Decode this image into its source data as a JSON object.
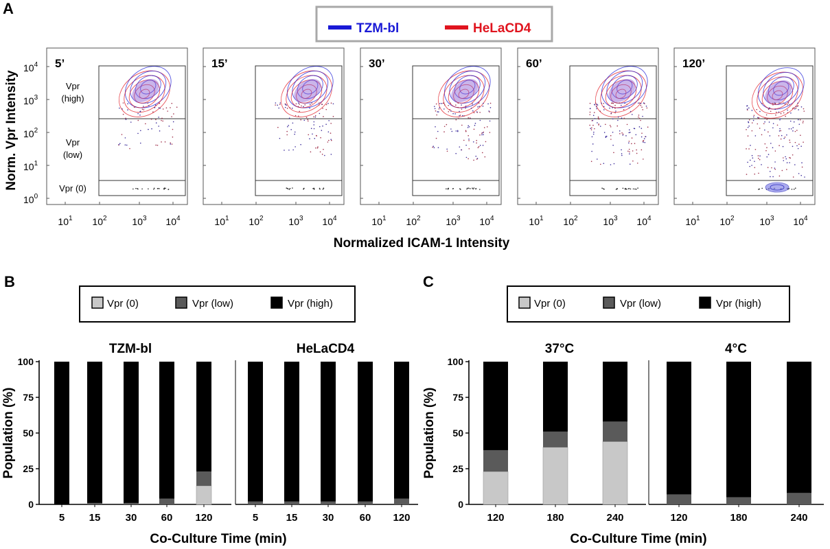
{
  "panel_labels": {
    "a": "A",
    "b": "B",
    "c": "C"
  },
  "panel_a": {
    "legend": [
      {
        "label": "TZM-bl",
        "color": "#1a1ad6"
      },
      {
        "label": "HeLaCD4",
        "color": "#e0141e"
      }
    ],
    "ylabel": "Norm. Vpr Intensity",
    "xlabel": "Normalized ICAM-1 Intensity",
    "y_tick_labels": [
      {
        "base": "10",
        "exp": "4"
      },
      {
        "base": "10",
        "exp": "3"
      },
      {
        "base": "10",
        "exp": "2"
      },
      {
        "base": "10",
        "exp": "1"
      },
      {
        "base": "10",
        "exp": "0"
      }
    ],
    "x_tick_labels": [
      {
        "base": "10",
        "exp": "1"
      },
      {
        "base": "10",
        "exp": "2"
      },
      {
        "base": "10",
        "exp": "3"
      },
      {
        "base": "10",
        "exp": "4"
      }
    ],
    "gate_labels": {
      "high": [
        "Vpr",
        "(high)"
      ],
      "low": [
        "Vpr",
        "(low)"
      ],
      "zero": "Vpr (0)"
    },
    "timepoints": [
      "5’",
      "15’",
      "30’",
      "60’",
      "120’"
    ],
    "axis_scale": "log"
  },
  "legend_bc": [
    {
      "label": "Vpr (0)",
      "color": "#c8c8c8"
    },
    {
      "label": "Vpr (low)",
      "color": "#5a5a5a"
    },
    {
      "label": "Vpr (high)",
      "color": "#000000"
    }
  ],
  "chart_data": [
    {
      "type": "bar",
      "stacked": true,
      "panel": "B",
      "title": "TZM-bl",
      "categories": [
        "5",
        "15",
        "30",
        "60",
        "120"
      ],
      "series": [
        {
          "name": "Vpr (0)",
          "values": [
            0,
            0,
            0,
            0,
            13
          ]
        },
        {
          "name": "Vpr (low)",
          "values": [
            0,
            1,
            1,
            4,
            10
          ]
        },
        {
          "name": "Vpr (high)",
          "values": [
            100,
            99,
            99,
            96,
            77
          ]
        }
      ],
      "ylabel": "Population (%)",
      "xlabel": "Co-Culture Time (min)",
      "ylim": [
        0,
        100
      ],
      "yticks": [
        0,
        25,
        50,
        75,
        100
      ]
    },
    {
      "type": "bar",
      "stacked": true,
      "panel": "B",
      "title": "HeLaCD4",
      "categories": [
        "5",
        "15",
        "30",
        "60",
        "120"
      ],
      "series": [
        {
          "name": "Vpr (0)",
          "values": [
            0,
            0,
            0,
            0,
            0
          ]
        },
        {
          "name": "Vpr (low)",
          "values": [
            2,
            2,
            2,
            2,
            4
          ]
        },
        {
          "name": "Vpr (high)",
          "values": [
            98,
            98,
            98,
            98,
            96
          ]
        }
      ],
      "xlabel": "Co-Culture Time (min)",
      "ylim": [
        0,
        100
      ]
    },
    {
      "type": "bar",
      "stacked": true,
      "panel": "C",
      "title": "37°C",
      "categories": [
        "120",
        "180",
        "240"
      ],
      "series": [
        {
          "name": "Vpr (0)",
          "values": [
            23,
            40,
            44
          ]
        },
        {
          "name": "Vpr (low)",
          "values": [
            15,
            11,
            14
          ]
        },
        {
          "name": "Vpr (high)",
          "values": [
            62,
            49,
            42
          ]
        }
      ],
      "ylabel": "Population (%)",
      "xlabel": "Co-Culture Time (min)",
      "ylim": [
        0,
        100
      ],
      "yticks": [
        0,
        25,
        50,
        75,
        100
      ]
    },
    {
      "type": "bar",
      "stacked": true,
      "panel": "C",
      "title": "4°C",
      "categories": [
        "120",
        "180",
        "240"
      ],
      "series": [
        {
          "name": "Vpr (0)",
          "values": [
            0,
            0,
            0
          ]
        },
        {
          "name": "Vpr (low)",
          "values": [
            7,
            5,
            8
          ]
        },
        {
          "name": "Vpr (high)",
          "values": [
            93,
            95,
            92
          ]
        }
      ],
      "xlabel": "Co-Culture Time (min)",
      "ylim": [
        0,
        100
      ]
    }
  ]
}
